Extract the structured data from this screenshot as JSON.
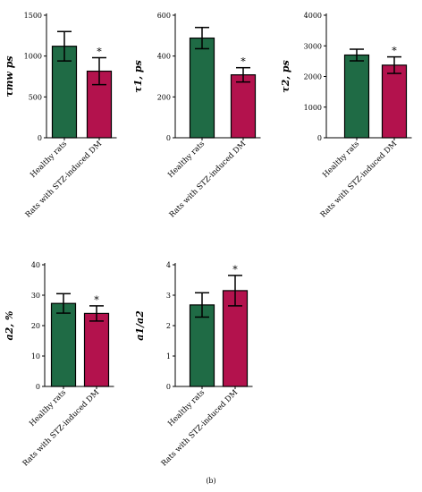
{
  "caption": "(b)",
  "colors": {
    "healthy": "#1f6b45",
    "diabetic": "#b3124d"
  },
  "chart_data": [
    {
      "type": "bar",
      "ylabel": "τmw ps",
      "categories": [
        "Healthy rats",
        "Rats with STZ-induced DM"
      ],
      "values": [
        1120,
        815
      ],
      "errors": [
        180,
        165
      ],
      "significance": [
        "",
        "*"
      ],
      "yticks": [
        0,
        500,
        1000,
        1500
      ],
      "ylim": [
        0,
        1500
      ],
      "grid": false
    },
    {
      "type": "bar",
      "ylabel": "τ1, ps",
      "categories": [
        "Healthy rats",
        "Rats with STZ-induced DM"
      ],
      "values": [
        488,
        308
      ],
      "errors": [
        52,
        35
      ],
      "significance": [
        "",
        "*"
      ],
      "yticks": [
        0,
        200,
        400,
        600
      ],
      "ylim": [
        0,
        600
      ],
      "grid": false
    },
    {
      "type": "bar",
      "ylabel": "τ2, ps",
      "categories": [
        "Healthy rats",
        "Rats with STZ-induced DM"
      ],
      "values": [
        2700,
        2370
      ],
      "errors": [
        190,
        270
      ],
      "significance": [
        "",
        "*"
      ],
      "yticks": [
        0,
        1000,
        2000,
        3000,
        4000
      ],
      "ylim": [
        0,
        4000
      ],
      "grid": false
    },
    {
      "type": "bar",
      "ylabel": "a2, %",
      "categories": [
        "Healthy rats",
        "Rats with STZ-induced DM"
      ],
      "values": [
        27.3,
        24.0
      ],
      "errors": [
        3.2,
        2.5
      ],
      "significance": [
        "",
        "*"
      ],
      "yticks": [
        0,
        10,
        20,
        30,
        40
      ],
      "ylim": [
        0,
        40
      ],
      "grid": false
    },
    {
      "type": "bar",
      "ylabel": "a1/a2",
      "categories": [
        "Healthy rats",
        "Rats with STZ-induced DM"
      ],
      "values": [
        2.68,
        3.15
      ],
      "errors": [
        0.4,
        0.5
      ],
      "significance": [
        "",
        "*"
      ],
      "yticks": [
        0,
        1,
        2,
        3,
        4
      ],
      "ylim": [
        0,
        4
      ],
      "grid": false
    }
  ]
}
